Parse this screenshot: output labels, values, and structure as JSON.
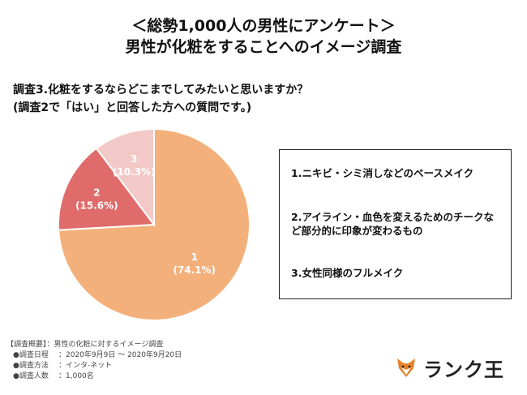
{
  "header": {
    "title_line1": "＜総勢1,000人の男性にアンケート＞",
    "title_line2": "男性が化粧をすることへのイメージ調査"
  },
  "question": {
    "line1": "調査3.化粧をするならどこまでしてみたいと思いますか？",
    "line2": "(調査2で「はい」と回答した方への質問です。)"
  },
  "chart_data": {
    "type": "pie",
    "categories": [
      "1",
      "2",
      "3"
    ],
    "values": [
      74.1,
      15.6,
      10.3
    ],
    "labels": [
      "(74.1%)",
      "(15.6%)",
      "(10.3%)"
    ],
    "colors": [
      "#f4b07a",
      "#e06b6b",
      "#f2c9c6"
    ],
    "legend": [
      "1.ニキビ・シミ消しなどのベースメイク",
      "2.アイライン・血色を変えるためのチークなど部分的に印象が変わるもの",
      "3.女性同様のフルメイク"
    ]
  },
  "survey": {
    "heading": "【調査概要】",
    "heading_value": "：男性の化粧に対するイメージ調査",
    "rows": [
      {
        "key": "●調査日程",
        "value": "：2020年9月9日 〜 2020年9月20日"
      },
      {
        "key": "●調査方法",
        "value": "：インタ-ネット"
      },
      {
        "key": "●調査人数",
        "value": "：1,000名"
      }
    ]
  },
  "logo": {
    "text": "ランク王",
    "icon": "fox-icon",
    "color": "#e8822a"
  }
}
